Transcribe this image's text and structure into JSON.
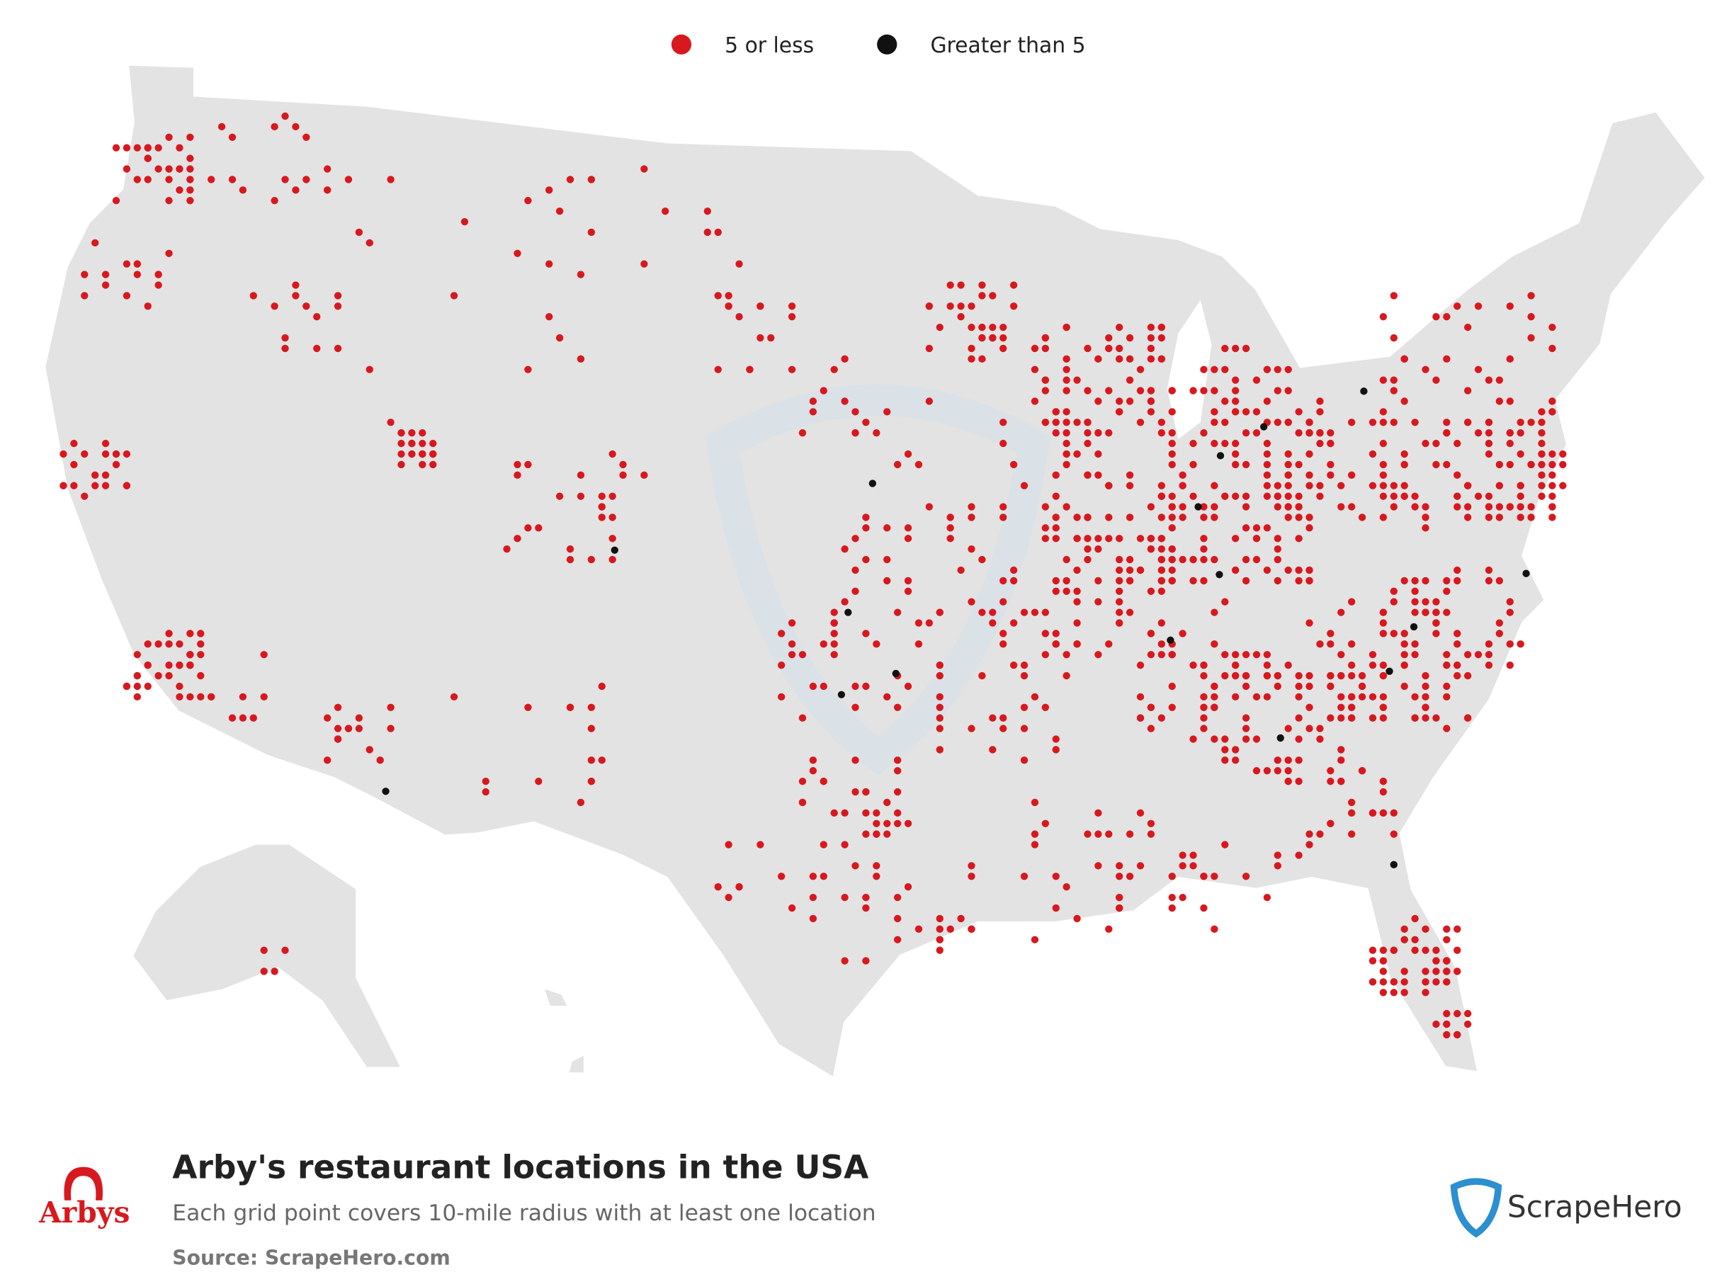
{
  "legend": [
    {
      "name": "5 or less",
      "color": "#d7191f"
    },
    {
      "name": "Greater than 5",
      "color": "#111111"
    }
  ],
  "title": "Arby's restaurant locations in the USA",
  "subtitle": "Each grid point covers 10-mile radius with at least one location",
  "source": "Source: ScrapeHero.com",
  "brand_logo_text": "Arbys",
  "publisher_logo_text": "ScrapeHero"
}
